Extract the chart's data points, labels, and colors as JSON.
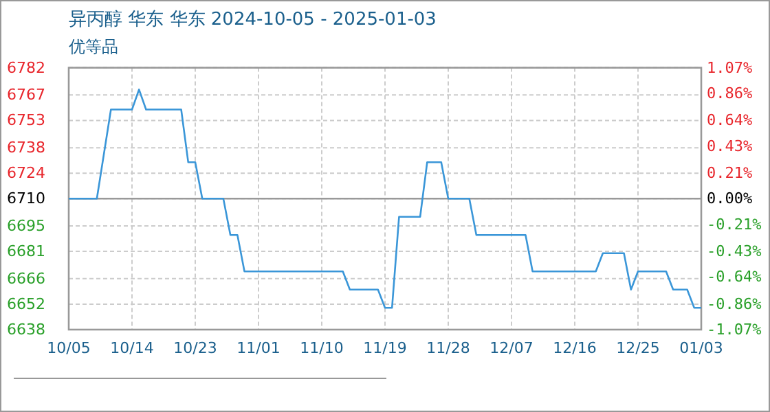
{
  "chart_data": {
    "type": "line",
    "title": "异丙醇 华东 华东 2024-10-05 - 2025-01-03",
    "subtitle": "优等品",
    "x": [
      "2024-10-05",
      "2024-10-09",
      "2024-10-11",
      "2024-10-14",
      "2024-10-15",
      "2024-10-16",
      "2024-10-21",
      "2024-10-22",
      "2024-10-23",
      "2024-10-24",
      "2024-10-27",
      "2024-10-28",
      "2024-10-29",
      "2024-10-30",
      "2024-11-13",
      "2024-11-14",
      "2024-11-18",
      "2024-11-19",
      "2024-11-20",
      "2024-11-21",
      "2024-11-24",
      "2024-11-25",
      "2024-11-27",
      "2024-11-28",
      "2024-12-01",
      "2024-12-02",
      "2024-12-09",
      "2024-12-10",
      "2024-12-19",
      "2024-12-20",
      "2024-12-23",
      "2024-12-24",
      "2024-12-25",
      "2024-12-29",
      "2024-12-30",
      "2025-01-01",
      "2025-01-02",
      "2025-01-03"
    ],
    "series": [
      {
        "color": "#3a96d8",
        "values": [
          6710,
          6710,
          6759,
          6759,
          6770,
          6759,
          6759,
          6730,
          6730,
          6710,
          6710,
          6690,
          6690,
          6670,
          6670,
          6660,
          6660,
          6650,
          6650,
          6700,
          6700,
          6730,
          6730,
          6710,
          6710,
          6690,
          6690,
          6670,
          6670,
          6680,
          6680,
          6660,
          6670,
          6670,
          6660,
          6660,
          6650,
          6650
        ]
      }
    ],
    "xlim": [
      "2024-10-05",
      "2025-01-03"
    ],
    "xticks": [
      {
        "value": "2024-10-05",
        "label": "10/05"
      },
      {
        "value": "2024-10-14",
        "label": "10/14"
      },
      {
        "value": "2024-10-23",
        "label": "10/23"
      },
      {
        "value": "2024-11-01",
        "label": "11/01"
      },
      {
        "value": "2024-11-10",
        "label": "11/10"
      },
      {
        "value": "2024-11-19",
        "label": "11/19"
      },
      {
        "value": "2024-11-28",
        "label": "11/28"
      },
      {
        "value": "2024-12-07",
        "label": "12/07"
      },
      {
        "value": "2024-12-16",
        "label": "12/16"
      },
      {
        "value": "2024-12-25",
        "label": "12/25"
      },
      {
        "value": "2025-01-03",
        "label": "01/03"
      }
    ],
    "ylim": [
      6638,
      6782
    ],
    "yticks": [
      6638,
      6652,
      6666,
      6681,
      6695,
      6710,
      6724,
      6738,
      6753,
      6767,
      6782
    ],
    "y2lim": [
      -1.07,
      1.07
    ],
    "y2ticks": [
      {
        "value": -1.07,
        "label": "-1.07%"
      },
      {
        "value": -0.86,
        "label": "-0.86%"
      },
      {
        "value": -0.64,
        "label": "-0.64%"
      },
      {
        "value": -0.43,
        "label": "-0.43%"
      },
      {
        "value": -0.21,
        "label": "-0.21%"
      },
      {
        "value": 0,
        "label": "0.00%"
      },
      {
        "value": 0.21,
        "label": "0.21%"
      },
      {
        "value": 0.43,
        "label": "0.43%"
      },
      {
        "value": 0.64,
        "label": "0.64%"
      },
      {
        "value": 0.86,
        "label": "0.86%"
      },
      {
        "value": 1.07,
        "label": "1.07%"
      }
    ],
    "ref_lines": [
      {
        "axis": "y",
        "value": 6710,
        "color": "#999999"
      }
    ],
    "grid": true,
    "line_style": "solid",
    "marker": "none"
  }
}
